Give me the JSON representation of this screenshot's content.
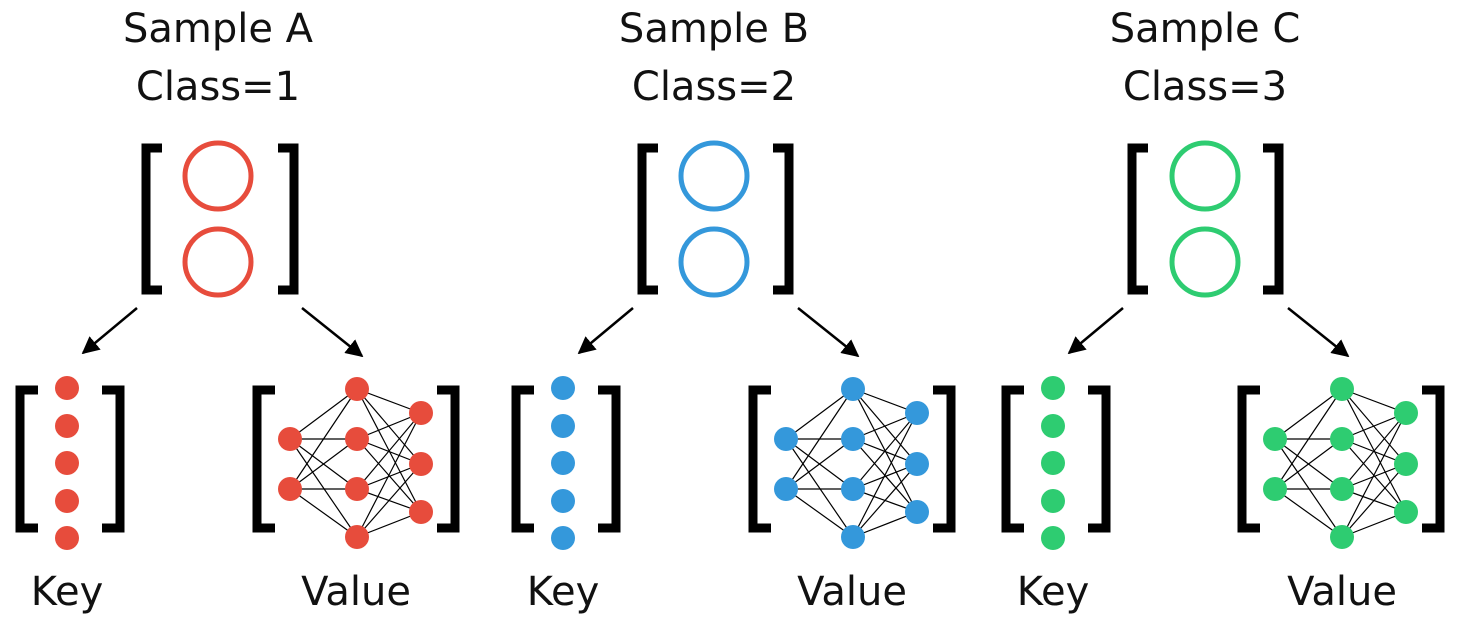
{
  "samples": [
    {
      "title": "Sample A",
      "class_label": "Class=1",
      "color": "#e74c3c",
      "key_label": "Key",
      "value_label": "Value"
    },
    {
      "title": "Sample B",
      "class_label": "Class=2",
      "color": "#3498db",
      "key_label": "Key",
      "value_label": "Value"
    },
    {
      "title": "Sample C",
      "class_label": "Class=3",
      "color": "#2ecc71",
      "key_label": "Key",
      "value_label": "Value"
    }
  ]
}
